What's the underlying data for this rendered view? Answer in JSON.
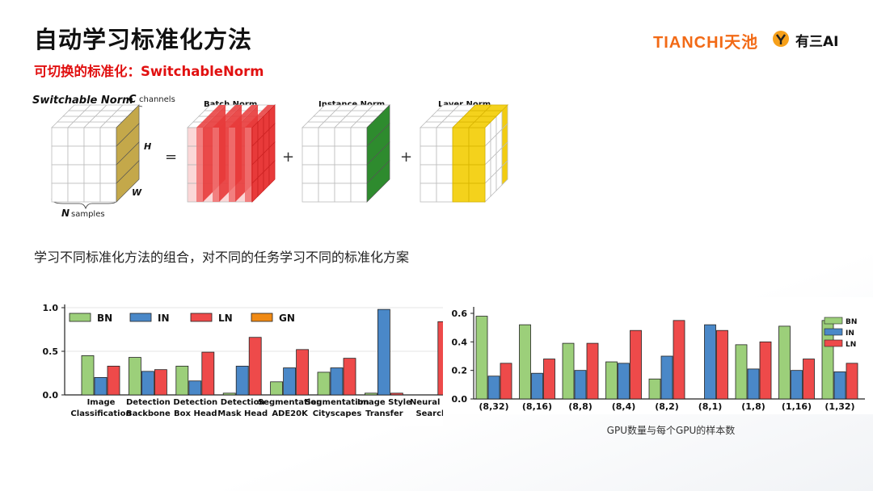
{
  "slide": {
    "title": "自动学习标准化方法",
    "subtitle": "可切换的标准化：SwitchableNorm",
    "description": "学习不同标准化方法的组合，对不同的任务学习不同的标准化方案"
  },
  "logos": {
    "tianchi_text": "TIANCHI",
    "tianchi_cn": "天池",
    "yousan_text": "有三AI"
  },
  "figure": {
    "switchable_label": "Switchable Norm",
    "c_label": "C",
    "c_text": "channels",
    "h_label": "H",
    "w_label": "W",
    "n_label": "N",
    "n_text": "samples",
    "batch_label": "Batch Norm",
    "instance_label": "Instance Norm",
    "layer_label": "Layer Norm",
    "equals": "=",
    "plus": "+"
  },
  "colors": {
    "bn": "#9ccf7a",
    "in": "#4a88c8",
    "ln": "#ee4a4a",
    "gn": "#f08a14",
    "title_red": "#e11010",
    "tianchi_orange": "#f26a16"
  },
  "chart_data": [
    {
      "type": "bar",
      "categories": [
        [
          "Image",
          "Classification"
        ],
        [
          "Detection",
          "Backbone"
        ],
        [
          "Detection",
          "Box Head"
        ],
        [
          "Detection",
          "Mask Head"
        ],
        [
          "Segmentation",
          "ADE20K"
        ],
        [
          "Segmentation",
          "Cityscapes"
        ],
        [
          "Image Style",
          "Transfer"
        ],
        [
          "Neural Ar",
          "Search"
        ]
      ],
      "series": [
        {
          "name": "BN",
          "values": [
            0.45,
            0.43,
            0.33,
            0.02,
            0.15,
            0.26,
            0.02,
            0.0
          ]
        },
        {
          "name": "IN",
          "values": [
            0.2,
            0.27,
            0.16,
            0.33,
            0.31,
            0.31,
            0.98,
            0.0
          ]
        },
        {
          "name": "LN",
          "values": [
            0.33,
            0.29,
            0.49,
            0.66,
            0.52,
            0.42,
            0.02,
            0.84
          ]
        },
        {
          "name": "GN",
          "values": [
            0,
            0,
            0,
            0,
            0,
            0,
            0,
            0
          ]
        }
      ],
      "yticks": [
        "0.0",
        "0.5",
        "1.0"
      ],
      "ylim": [
        0,
        1
      ],
      "legend": "top, horizontal"
    },
    {
      "type": "bar",
      "categories": [
        "(8,32)",
        "(8,16)",
        "(8,8)",
        "(8,4)",
        "(8,2)",
        "(8,1)",
        "(1,8)",
        "(1,16)",
        "(1,32)"
      ],
      "series": [
        {
          "name": "BN",
          "values": [
            0.58,
            0.52,
            0.39,
            0.26,
            0.14,
            0.0,
            0.38,
            0.51,
            0.55
          ]
        },
        {
          "name": "IN",
          "values": [
            0.16,
            0.18,
            0.2,
            0.25,
            0.3,
            0.52,
            0.21,
            0.2,
            0.19
          ]
        },
        {
          "name": "LN",
          "values": [
            0.25,
            0.28,
            0.39,
            0.48,
            0.55,
            0.48,
            0.4,
            0.28,
            0.25
          ]
        }
      ],
      "yticks": [
        "0.0",
        "0.2",
        "0.4",
        "0.6"
      ],
      "ylim": [
        0,
        0.6
      ],
      "xlabel": "GPU数量与每个GPU的样本数",
      "legend": "top-right"
    }
  ]
}
